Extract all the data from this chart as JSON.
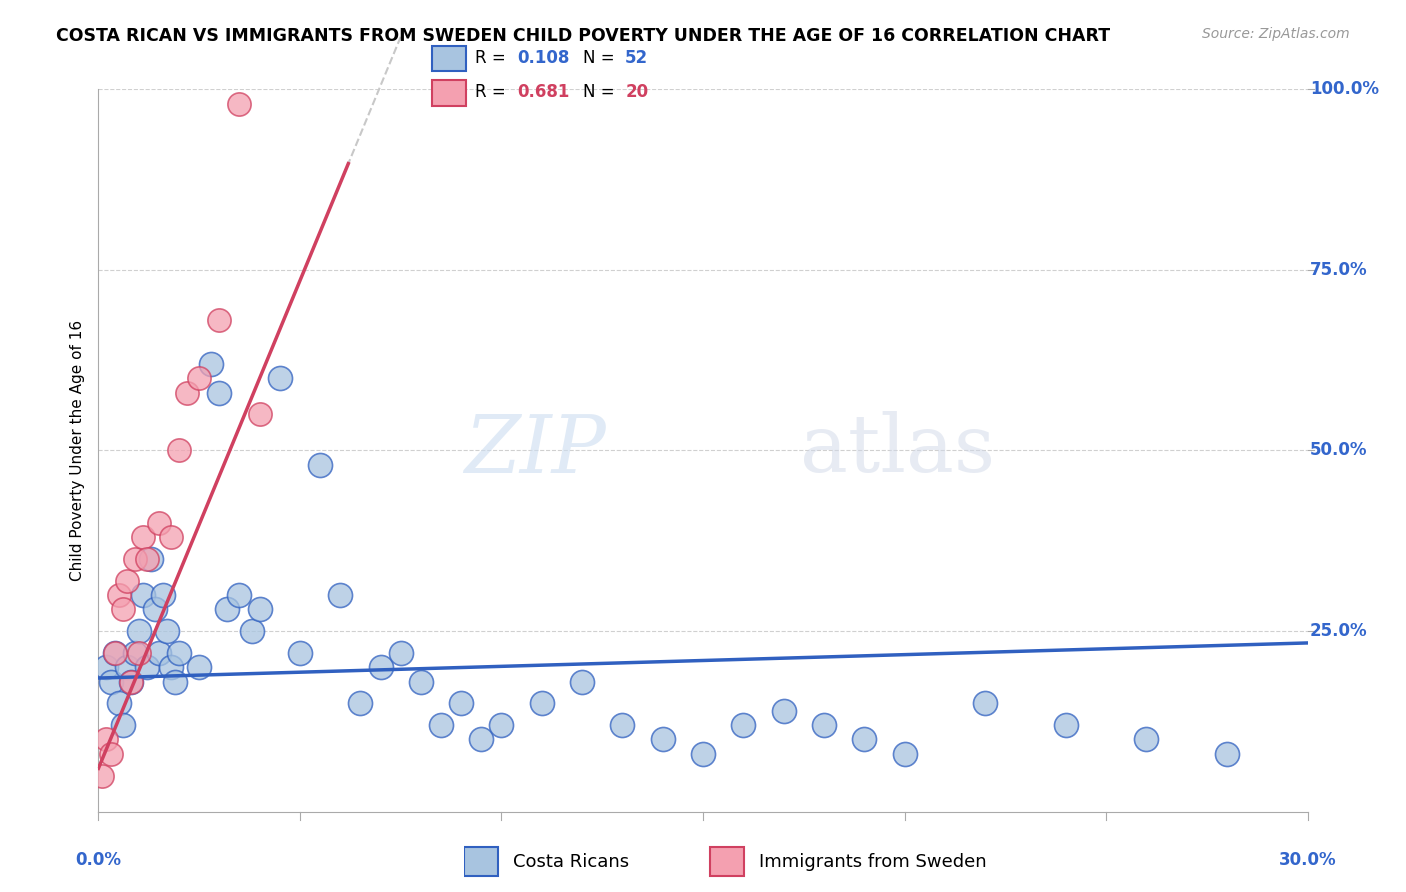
{
  "title": "COSTA RICAN VS IMMIGRANTS FROM SWEDEN CHILD POVERTY UNDER THE AGE OF 16 CORRELATION CHART",
  "source": "Source: ZipAtlas.com",
  "xlabel": "",
  "ylabel": "Child Poverty Under the Age of 16",
  "xmin": 0.0,
  "xmax": 0.3,
  "ymin": 0.0,
  "ymax": 1.0,
  "blue_R": 0.108,
  "blue_N": 52,
  "pink_R": 0.681,
  "pink_N": 20,
  "blue_color": "#a8c4e0",
  "pink_color": "#f4a0b0",
  "blue_line_color": "#3060c0",
  "pink_line_color": "#d04060",
  "watermark_zip": "ZIP",
  "watermark_atlas": "atlas",
  "blue_scatter_x": [
    0.002,
    0.003,
    0.004,
    0.005,
    0.006,
    0.007,
    0.008,
    0.009,
    0.01,
    0.011,
    0.012,
    0.013,
    0.014,
    0.015,
    0.016,
    0.017,
    0.018,
    0.019,
    0.02,
    0.025,
    0.028,
    0.03,
    0.032,
    0.035,
    0.038,
    0.04,
    0.045,
    0.05,
    0.055,
    0.06,
    0.065,
    0.07,
    0.075,
    0.08,
    0.085,
    0.09,
    0.095,
    0.1,
    0.11,
    0.12,
    0.13,
    0.14,
    0.15,
    0.16,
    0.17,
    0.18,
    0.19,
    0.2,
    0.22,
    0.24,
    0.26,
    0.28
  ],
  "blue_scatter_y": [
    0.2,
    0.18,
    0.22,
    0.15,
    0.12,
    0.2,
    0.18,
    0.22,
    0.25,
    0.3,
    0.2,
    0.35,
    0.28,
    0.22,
    0.3,
    0.25,
    0.2,
    0.18,
    0.22,
    0.2,
    0.62,
    0.58,
    0.28,
    0.3,
    0.25,
    0.28,
    0.6,
    0.22,
    0.48,
    0.3,
    0.15,
    0.2,
    0.22,
    0.18,
    0.12,
    0.15,
    0.1,
    0.12,
    0.15,
    0.18,
    0.12,
    0.1,
    0.08,
    0.12,
    0.14,
    0.12,
    0.1,
    0.08,
    0.15,
    0.12,
    0.1,
    0.08
  ],
  "pink_scatter_x": [
    0.001,
    0.002,
    0.003,
    0.004,
    0.005,
    0.006,
    0.007,
    0.008,
    0.009,
    0.01,
    0.011,
    0.012,
    0.015,
    0.018,
    0.02,
    0.022,
    0.025,
    0.03,
    0.035,
    0.04
  ],
  "pink_scatter_y": [
    0.05,
    0.1,
    0.08,
    0.22,
    0.3,
    0.28,
    0.32,
    0.18,
    0.35,
    0.22,
    0.38,
    0.35,
    0.4,
    0.38,
    0.5,
    0.58,
    0.6,
    0.68,
    0.98,
    0.55
  ]
}
